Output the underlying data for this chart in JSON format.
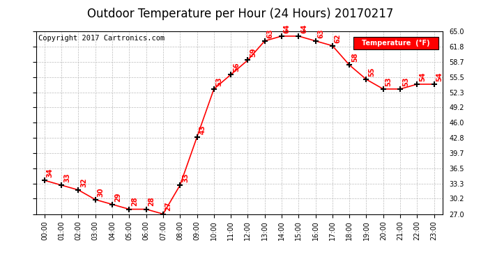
{
  "title": "Outdoor Temperature per Hour (24 Hours) 20170217",
  "copyright": "Copyright 2017 Cartronics.com",
  "legend_label": "Temperature  (°F)",
  "hours": [
    0,
    1,
    2,
    3,
    4,
    5,
    6,
    7,
    8,
    9,
    10,
    11,
    12,
    13,
    14,
    15,
    16,
    17,
    18,
    19,
    20,
    21,
    22,
    23
  ],
  "temperatures": [
    34,
    33,
    32,
    30,
    29,
    28,
    28,
    27,
    33,
    43,
    53,
    56,
    59,
    63,
    64,
    64,
    63,
    62,
    58,
    55,
    53,
    53,
    54,
    54
  ],
  "xlim": [
    -0.5,
    23.5
  ],
  "ylim": [
    27.0,
    65.0
  ],
  "yticks": [
    27.0,
    30.2,
    33.3,
    36.5,
    39.7,
    42.8,
    46.0,
    49.2,
    52.3,
    55.5,
    58.7,
    61.8,
    65.0
  ],
  "line_color": "red",
  "marker": "+",
  "marker_color": "black",
  "bg_color": "white",
  "grid_color": "#bbbbbb",
  "label_color": "red",
  "title_fontsize": 12,
  "copyright_fontsize": 7.5,
  "tick_label_fontsize": 7,
  "data_label_fontsize": 7,
  "legend_bg": "red",
  "legend_text_color": "white"
}
